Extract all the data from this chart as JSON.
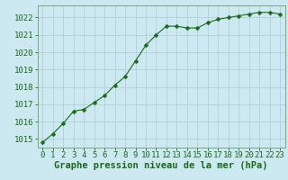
{
  "x": [
    0,
    1,
    2,
    3,
    4,
    5,
    6,
    7,
    8,
    9,
    10,
    11,
    12,
    13,
    14,
    15,
    16,
    17,
    18,
    19,
    20,
    21,
    22,
    23
  ],
  "y": [
    1014.8,
    1015.3,
    1015.9,
    1016.6,
    1016.7,
    1017.1,
    1017.5,
    1018.1,
    1018.6,
    1019.5,
    1020.4,
    1021.0,
    1021.5,
    1021.5,
    1021.4,
    1021.4,
    1021.7,
    1021.9,
    1022.0,
    1022.1,
    1022.2,
    1022.3,
    1022.3,
    1022.2
  ],
  "ylim": [
    1014.5,
    1022.7
  ],
  "xlim": [
    -0.5,
    23.5
  ],
  "yticks": [
    1015,
    1016,
    1017,
    1018,
    1019,
    1020,
    1021,
    1022
  ],
  "xticks": [
    0,
    1,
    2,
    3,
    4,
    5,
    6,
    7,
    8,
    9,
    10,
    11,
    12,
    13,
    14,
    15,
    16,
    17,
    18,
    19,
    20,
    21,
    22,
    23
  ],
  "line_color": "#1a6b1a",
  "marker": "D",
  "marker_size": 2.5,
  "bg_color": "#cce8f0",
  "grid_color": "#b0d0d8",
  "xlabel": "Graphe pression niveau de la mer (hPa)",
  "xlabel_color": "#1a6b1a",
  "tick_color": "#1a6b1a",
  "xlabel_fontsize": 7.5,
  "tick_fontsize": 6.5,
  "spine_color": "#7aaa7a"
}
